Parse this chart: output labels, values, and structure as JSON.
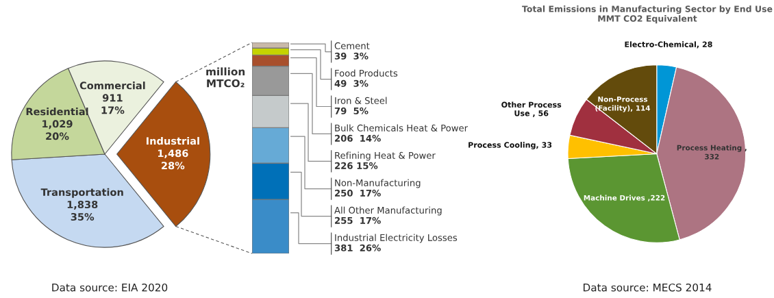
{
  "chart_data": [
    {
      "type": "pie",
      "categories": [
        "Industrial",
        "Transportation",
        "Residential",
        "Commercial"
      ],
      "values": [
        1486,
        1838,
        1029,
        911
      ],
      "value_labels": [
        "1,486\n28%",
        "1,838\n35%",
        "1,029\n20%",
        "911\n17%"
      ],
      "colors": [
        "#a84e0e",
        "#c5d9f1",
        "#c4d79b",
        "#ebf1de"
      ],
      "annotations": [
        "Data source: EIA 2020"
      ]
    },
    {
      "type": "bar",
      "stacked": true,
      "categories": [
        null
      ],
      "ylabel": "million\nMTCO₂",
      "tick_labels": false,
      "series": [
        {
          "name": "Industrial Electricity Losses",
          "color": "#3a8cc8",
          "values": [
            381
          ],
          "value_labels": [
            "381  26%"
          ]
        },
        {
          "name": "All Other Manufacturing",
          "color": "#0070b8",
          "values": [
            255
          ],
          "value_labels": [
            "255  17%"
          ]
        },
        {
          "name": "Non-Manufacturing",
          "color": "#66aad6",
          "values": [
            250
          ],
          "value_labels": [
            "250  17%"
          ]
        },
        {
          "name": "Refining Heat & Power",
          "color": "#c5cacb",
          "values": [
            226
          ],
          "value_labels": [
            "226 15%"
          ]
        },
        {
          "name": "Bulk Chemicals Heat & Power",
          "color": "#999999",
          "values": [
            206
          ],
          "value_labels": [
            "206  14%"
          ]
        },
        {
          "name": "Iron & Steel",
          "color": "#a84f2c",
          "values": [
            79
          ],
          "value_labels": [
            "79  5%"
          ]
        },
        {
          "name": "Food Products",
          "color": "#c5d300",
          "values": [
            49
          ],
          "value_labels": [
            "49  3%"
          ]
        },
        {
          "name": "Cement",
          "color": "#c9b9a9",
          "values": [
            39
          ],
          "value_labels": [
            "39  3%"
          ]
        }
      ]
    },
    {
      "type": "pie",
      "title": "Total Emissions in Manufacturing Sector by End Use\nMMT CO2 Equivalent",
      "categories": [
        "Electro-Chemical, 28",
        "Process Heating ,\n332",
        "Machine Drives ,222",
        "Process Cooling, 33",
        "Other Process\nUse , 56",
        "Non-Process\n(Facility), 114"
      ],
      "values": [
        28,
        332,
        222,
        33,
        56,
        114
      ],
      "colors": [
        "#0096d6",
        "#ad7482",
        "#5b9632",
        "#ffc000",
        "#a0303f",
        "#634b0c"
      ],
      "annotations": [
        "Data source: MECS 2014"
      ]
    }
  ]
}
